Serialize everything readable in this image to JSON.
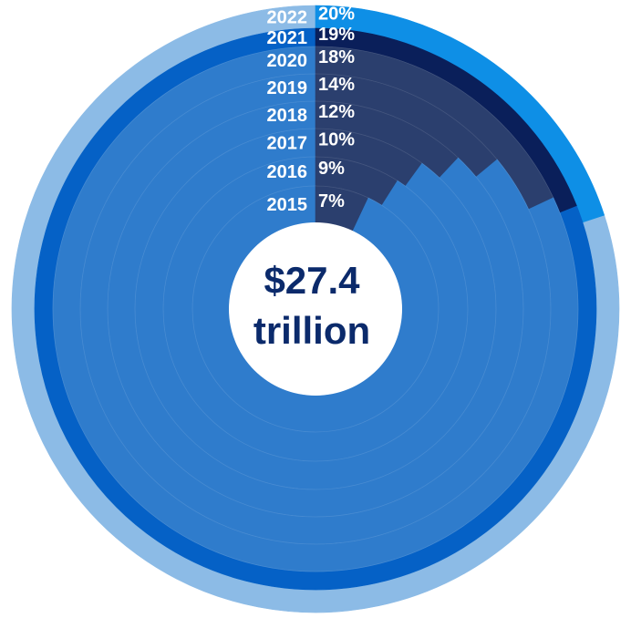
{
  "chart_data": {
    "type": "pie",
    "subtype": "concentric-rings",
    "center_value": "$27.4",
    "center_unit": "trillion",
    "rings": [
      {
        "year": "2015",
        "label": "7%",
        "value": 7
      },
      {
        "year": "2016",
        "label": "9%",
        "value": 9
      },
      {
        "year": "2017",
        "label": "10%",
        "value": 10
      },
      {
        "year": "2018",
        "label": "12%",
        "value": 12
      },
      {
        "year": "2019",
        "label": "14%",
        "value": 14
      },
      {
        "year": "2020",
        "label": "18%",
        "value": 18
      },
      {
        "year": "2021",
        "label": "19%",
        "value": 19
      },
      {
        "year": "2022",
        "label": "20%",
        "value": 20
      }
    ],
    "colors": {
      "highlight_inner": "#2b3f6e",
      "highlight_2021": "#0a1f5a",
      "highlight_2022": "#0e8fe6",
      "remainder_inner": "#2f7ccc",
      "remainder_2021": "#0561c6",
      "remainder_2022": "#8cbbe6",
      "center": "#ffffff",
      "label_text": "#ffffff",
      "center_text": "#0b2a6b"
    }
  }
}
